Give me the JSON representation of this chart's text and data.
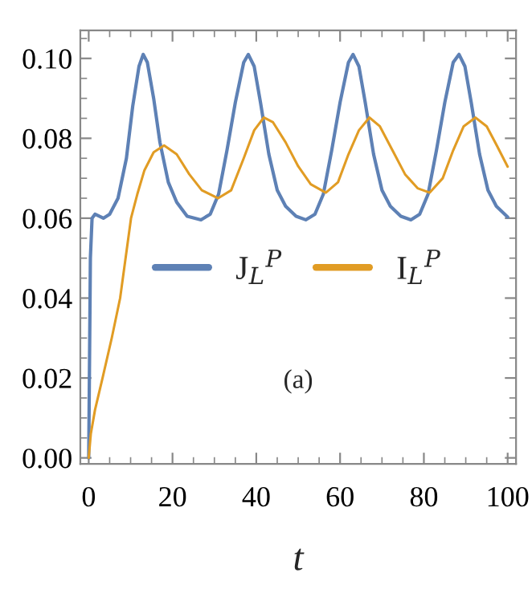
{
  "chart_data": {
    "type": "line",
    "xlabel": "t",
    "annotations": [
      "(a)"
    ],
    "legend": "center",
    "grid": false,
    "xlim": [
      -2,
      102
    ],
    "ylim": [
      -0.0015,
      0.107
    ],
    "xticks": [
      0,
      20,
      40,
      60,
      80,
      100
    ],
    "yticks": [
      {
        "value": 0,
        "label": "0.00"
      },
      {
        "value": 0.02,
        "label": "0.02"
      },
      {
        "value": 0.04,
        "label": "0.04"
      },
      {
        "value": 0.06,
        "label": "0.06"
      },
      {
        "value": 0.08,
        "label": "0.08"
      },
      {
        "value": 0.1,
        "label": "0.10"
      }
    ],
    "series": [
      {
        "name": "J$_{L}$$^{P}$",
        "color": "#5e81b5",
        "x": [
          0,
          0.4,
          0.8,
          1.5,
          2.5,
          3.5,
          5,
          7,
          9,
          10.5,
          12,
          13,
          14,
          15.5,
          17,
          19,
          21,
          23.5,
          26.8,
          29,
          31,
          33,
          35,
          37,
          38.1,
          39.5,
          41,
          43,
          45,
          47,
          49.5,
          51.8,
          54,
          56,
          58,
          60,
          62,
          63.1,
          64.5,
          66,
          68,
          70,
          72,
          74.5,
          76.9,
          79,
          81,
          83,
          85,
          87,
          88.4,
          89.8,
          91.3,
          93.3,
          95.3,
          97.3,
          100
        ],
        "values": [
          0,
          0.05,
          0.06,
          0.061,
          0.0605,
          0.06,
          0.061,
          0.065,
          0.075,
          0.088,
          0.098,
          0.101,
          0.099,
          0.09,
          0.079,
          0.069,
          0.064,
          0.0605,
          0.0596,
          0.061,
          0.066,
          0.077,
          0.089,
          0.099,
          0.101,
          0.098,
          0.089,
          0.076,
          0.067,
          0.063,
          0.0605,
          0.0596,
          0.061,
          0.066,
          0.077,
          0.089,
          0.099,
          0.101,
          0.098,
          0.089,
          0.076,
          0.067,
          0.063,
          0.0605,
          0.0596,
          0.061,
          0.066,
          0.077,
          0.089,
          0.099,
          0.101,
          0.098,
          0.089,
          0.076,
          0.067,
          0.063,
          0.0603
        ]
      },
      {
        "name": "I$_{L}$$^{P}$",
        "color": "#e19c24",
        "x": [
          0,
          0.5,
          1.5,
          3.3,
          5.5,
          7.5,
          8.8,
          10.1,
          11.6,
          13.3,
          15.5,
          18,
          21,
          24,
          27,
          30.9,
          34,
          37,
          39.5,
          41.8,
          44,
          47,
          50,
          53,
          56.6,
          59.5,
          62,
          64.5,
          67,
          69.5,
          72.5,
          75.5,
          78.5,
          81.4,
          84.5,
          87,
          89.5,
          92.3,
          95,
          97.5,
          100
        ],
        "values": [
          0,
          0.006,
          0.012,
          0.02,
          0.03,
          0.04,
          0.05,
          0.06,
          0.066,
          0.072,
          0.0765,
          0.0782,
          0.076,
          0.071,
          0.067,
          0.065,
          0.067,
          0.075,
          0.082,
          0.0852,
          0.084,
          0.079,
          0.073,
          0.0685,
          0.0664,
          0.069,
          0.076,
          0.082,
          0.0852,
          0.083,
          0.077,
          0.071,
          0.0675,
          0.0664,
          0.07,
          0.077,
          0.083,
          0.0852,
          0.083,
          0.078,
          0.0729
        ]
      }
    ]
  }
}
